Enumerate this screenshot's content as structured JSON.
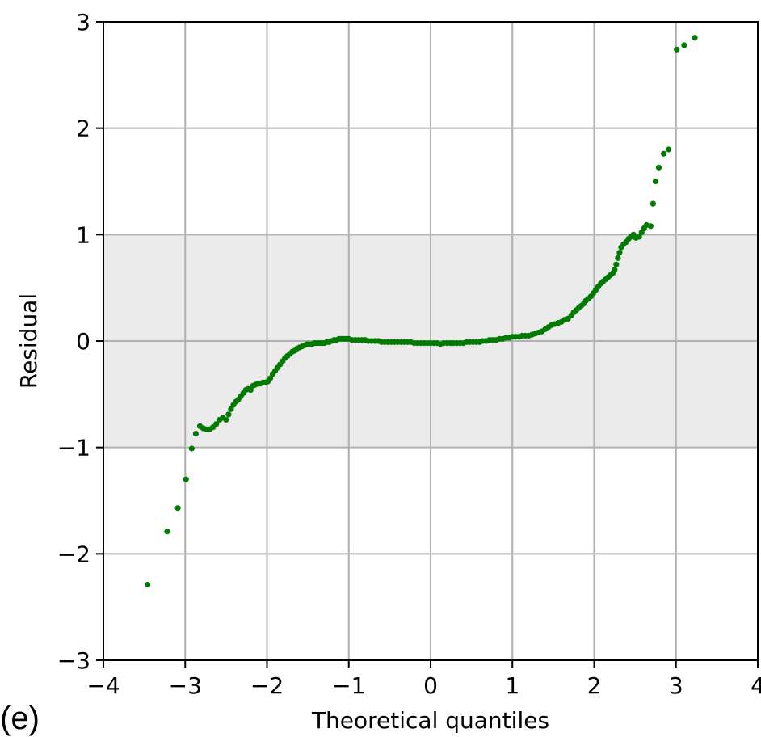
{
  "panel_label": "(e)",
  "colors": {
    "points": "#007a00",
    "band": "#ebebeb",
    "grid": "#b0b0b0",
    "axis": "#000000"
  },
  "chart_data": {
    "type": "scatter",
    "title": "",
    "xlabel": "Theoretical quantiles",
    "ylabel": "Residual",
    "xlim": [
      -4,
      4
    ],
    "ylim": [
      -3,
      3
    ],
    "xticks": [
      -4,
      -3,
      -2,
      -1,
      0,
      1,
      2,
      3,
      4
    ],
    "yticks": [
      -3,
      -2,
      -1,
      0,
      1,
      2,
      3
    ],
    "xtick_labels": [
      "−4",
      "−3",
      "−2",
      "−1",
      "0",
      "1",
      "2",
      "3",
      "4"
    ],
    "ytick_labels": [
      "−3",
      "−2",
      "−1",
      "0",
      "1",
      "2",
      "3"
    ],
    "grid": true,
    "shaded_band": [
      -1,
      1
    ],
    "point_color": "#007a00",
    "points": [
      [
        -3.46,
        -2.29
      ],
      [
        -3.22,
        -1.79
      ],
      [
        -3.09,
        -1.57
      ],
      [
        -2.99,
        -1.3
      ],
      [
        -2.92,
        -1.01
      ],
      [
        -2.87,
        -0.87
      ],
      [
        -2.82,
        -0.8
      ],
      [
        -2.78,
        -0.82
      ],
      [
        -2.74,
        -0.83
      ],
      [
        -2.7,
        -0.83
      ],
      [
        -2.66,
        -0.81
      ],
      [
        -2.62,
        -0.78
      ],
      [
        -2.58,
        -0.74
      ],
      [
        -2.54,
        -0.72
      ],
      [
        -2.5,
        -0.74
      ],
      [
        -2.47,
        -0.69
      ],
      [
        -2.44,
        -0.64
      ],
      [
        -2.41,
        -0.6
      ],
      [
        -2.38,
        -0.57
      ],
      [
        -2.35,
        -0.55
      ],
      [
        -2.32,
        -0.52
      ],
      [
        -2.29,
        -0.49
      ],
      [
        -2.26,
        -0.46
      ],
      [
        -2.23,
        -0.45
      ],
      [
        -2.2,
        -0.46
      ],
      [
        -2.17,
        -0.42
      ],
      [
        -2.14,
        -0.41
      ],
      [
        -2.11,
        -0.4
      ],
      [
        -2.08,
        -0.4
      ],
      [
        -2.05,
        -0.39
      ],
      [
        -2.02,
        -0.39
      ],
      [
        -1.99,
        -0.38
      ],
      [
        -1.96,
        -0.35
      ],
      [
        -1.93,
        -0.31
      ],
      [
        -1.9,
        -0.28
      ],
      [
        -1.87,
        -0.25
      ],
      [
        -1.84,
        -0.22
      ],
      [
        -1.81,
        -0.19
      ],
      [
        -1.78,
        -0.16
      ],
      [
        -1.75,
        -0.14
      ],
      [
        -1.72,
        -0.12
      ],
      [
        -1.69,
        -0.1
      ],
      [
        -1.66,
        -0.09
      ],
      [
        -1.63,
        -0.07
      ],
      [
        -1.6,
        -0.06
      ],
      [
        -1.57,
        -0.05
      ],
      [
        -1.54,
        -0.04
      ],
      [
        -1.51,
        -0.03
      ],
      [
        -1.48,
        -0.03
      ],
      [
        -1.45,
        -0.03
      ],
      [
        -1.42,
        -0.02
      ],
      [
        -1.39,
        -0.02
      ],
      [
        -1.36,
        -0.02
      ],
      [
        -1.33,
        -0.02
      ],
      [
        -1.3,
        -0.02
      ],
      [
        -1.27,
        -0.01
      ],
      [
        -1.24,
        -0.01
      ],
      [
        -1.21,
        0.0
      ],
      [
        -1.18,
        0.01
      ],
      [
        -1.15,
        0.01
      ],
      [
        -1.12,
        0.02
      ],
      [
        -1.09,
        0.02
      ],
      [
        -1.06,
        0.02
      ],
      [
        -1.03,
        0.02
      ],
      [
        -1.0,
        0.02
      ],
      [
        -0.96,
        0.01
      ],
      [
        -0.92,
        0.01
      ],
      [
        -0.88,
        0.01
      ],
      [
        -0.84,
        0.01
      ],
      [
        -0.8,
        0.01
      ],
      [
        -0.76,
        0.0
      ],
      [
        -0.72,
        0.0
      ],
      [
        -0.68,
        0.0
      ],
      [
        -0.64,
        0.0
      ],
      [
        -0.6,
        -0.01
      ],
      [
        -0.56,
        -0.01
      ],
      [
        -0.52,
        -0.01
      ],
      [
        -0.48,
        -0.01
      ],
      [
        -0.44,
        -0.01
      ],
      [
        -0.4,
        -0.01
      ],
      [
        -0.36,
        -0.01
      ],
      [
        -0.32,
        -0.01
      ],
      [
        -0.28,
        -0.01
      ],
      [
        -0.24,
        -0.01
      ],
      [
        -0.2,
        -0.02
      ],
      [
        -0.16,
        -0.02
      ],
      [
        -0.12,
        -0.02
      ],
      [
        -0.08,
        -0.02
      ],
      [
        -0.04,
        -0.02
      ],
      [
        0.0,
        -0.02
      ],
      [
        0.04,
        -0.02
      ],
      [
        0.08,
        -0.02
      ],
      [
        0.12,
        -0.03
      ],
      [
        0.16,
        -0.02
      ],
      [
        0.2,
        -0.02
      ],
      [
        0.24,
        -0.02
      ],
      [
        0.28,
        -0.02
      ],
      [
        0.32,
        -0.02
      ],
      [
        0.36,
        -0.02
      ],
      [
        0.4,
        -0.02
      ],
      [
        0.44,
        -0.01
      ],
      [
        0.48,
        -0.01
      ],
      [
        0.52,
        -0.01
      ],
      [
        0.56,
        -0.01
      ],
      [
        0.6,
        -0.01
      ],
      [
        0.64,
        0.0
      ],
      [
        0.68,
        0.0
      ],
      [
        0.72,
        0.01
      ],
      [
        0.76,
        0.01
      ],
      [
        0.8,
        0.01
      ],
      [
        0.84,
        0.02
      ],
      [
        0.88,
        0.02
      ],
      [
        0.92,
        0.03
      ],
      [
        0.96,
        0.03
      ],
      [
        1.0,
        0.04
      ],
      [
        1.04,
        0.04
      ],
      [
        1.08,
        0.04
      ],
      [
        1.12,
        0.05
      ],
      [
        1.16,
        0.05
      ],
      [
        1.2,
        0.05
      ],
      [
        1.24,
        0.06
      ],
      [
        1.28,
        0.07
      ],
      [
        1.32,
        0.08
      ],
      [
        1.36,
        0.09
      ],
      [
        1.4,
        0.11
      ],
      [
        1.44,
        0.13
      ],
      [
        1.48,
        0.15
      ],
      [
        1.52,
        0.16
      ],
      [
        1.56,
        0.17
      ],
      [
        1.6,
        0.18
      ],
      [
        1.64,
        0.2
      ],
      [
        1.68,
        0.21
      ],
      [
        1.72,
        0.24
      ],
      [
        1.75,
        0.27
      ],
      [
        1.78,
        0.29
      ],
      [
        1.81,
        0.31
      ],
      [
        1.84,
        0.33
      ],
      [
        1.87,
        0.35
      ],
      [
        1.9,
        0.38
      ],
      [
        1.93,
        0.4
      ],
      [
        1.96,
        0.42
      ],
      [
        1.99,
        0.45
      ],
      [
        2.02,
        0.48
      ],
      [
        2.05,
        0.51
      ],
      [
        2.08,
        0.54
      ],
      [
        2.11,
        0.56
      ],
      [
        2.14,
        0.58
      ],
      [
        2.17,
        0.6
      ],
      [
        2.2,
        0.62
      ],
      [
        2.23,
        0.64
      ],
      [
        2.25,
        0.67
      ],
      [
        2.27,
        0.72
      ],
      [
        2.29,
        0.78
      ],
      [
        2.31,
        0.83
      ],
      [
        2.33,
        0.88
      ],
      [
        2.36,
        0.91
      ],
      [
        2.39,
        0.93
      ],
      [
        2.42,
        0.96
      ],
      [
        2.45,
        0.98
      ],
      [
        2.48,
        1.0
      ],
      [
        2.51,
        0.97
      ],
      [
        2.55,
        0.98
      ],
      [
        2.58,
        1.02
      ],
      [
        2.61,
        1.06
      ],
      [
        2.64,
        1.09
      ],
      [
        2.69,
        1.08
      ],
      [
        2.72,
        1.29
      ],
      [
        2.75,
        1.5
      ],
      [
        2.79,
        1.63
      ],
      [
        2.85,
        1.76
      ],
      [
        2.91,
        1.8
      ],
      [
        3.01,
        2.74
      ],
      [
        3.1,
        2.78
      ],
      [
        3.23,
        2.85
      ]
    ]
  }
}
